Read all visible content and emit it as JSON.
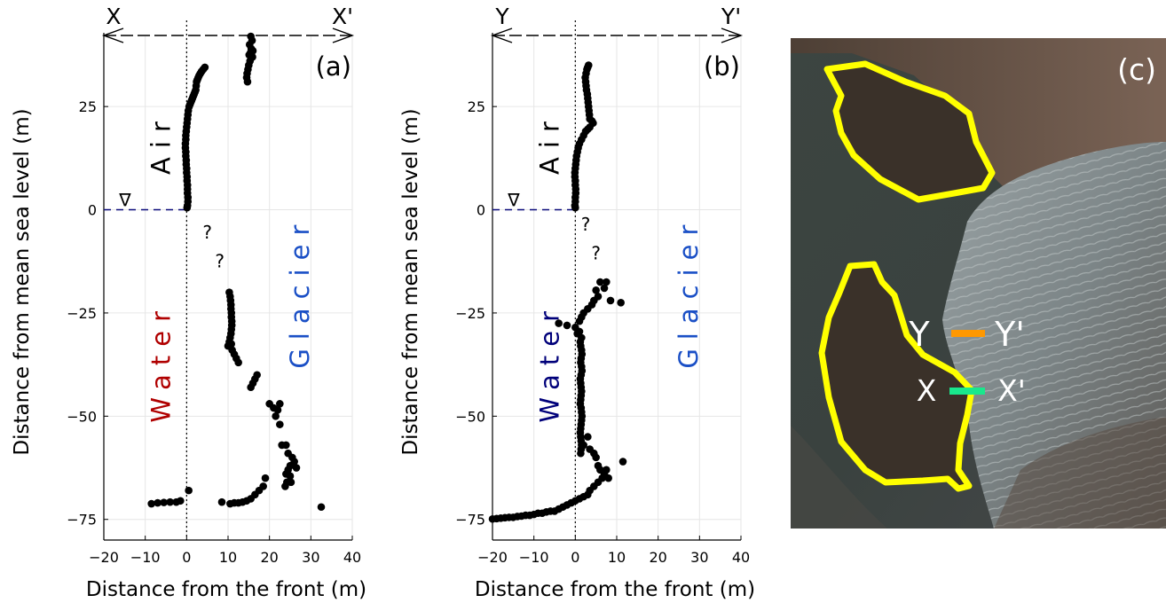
{
  "colors": {
    "points": "#000000",
    "grid": "#e6e6e6",
    "sea_level_line": "#0a0a7a",
    "water_red": "#b00000",
    "water_navy": "#00007a",
    "glacier_blue": "#1a4fc6",
    "outline_yellow": "#ffff00",
    "profile_orange": "#ff9800",
    "profile_green": "#19e88c"
  },
  "chart_data": [
    {
      "type": "scatter",
      "panel_label": "(a)",
      "xlabel": "Distance from the front (m)",
      "ylabel": "Distance from mean sea level (m)",
      "xlim": [
        -20,
        40
      ],
      "ylim": [
        -80,
        42
      ],
      "xticks": [
        -20,
        -10,
        0,
        10,
        20,
        30,
        40
      ],
      "yticks": [
        -75,
        -50,
        -25,
        0,
        25
      ],
      "grid": true,
      "profile_start_label": "X",
      "profile_end_label": "X'",
      "region_labels": {
        "air": "Air",
        "water": "Water",
        "glacier": "Glacier"
      },
      "sea_level_symbol": "∇",
      "unknown_markers": [
        {
          "x": 5,
          "y": -7,
          "text": "?"
        },
        {
          "x": 8,
          "y": -14,
          "text": "?"
        }
      ],
      "points": [
        [
          15.5,
          42
        ],
        [
          15.8,
          41
        ],
        [
          15.2,
          40
        ],
        [
          15.6,
          39
        ],
        [
          15.4,
          38
        ],
        [
          15.9,
          37
        ],
        [
          15.3,
          36
        ],
        [
          15.0,
          35
        ],
        [
          14.8,
          34
        ],
        [
          14.6,
          33
        ],
        [
          14.5,
          32
        ],
        [
          14.7,
          31
        ],
        [
          16.0,
          38.5
        ],
        [
          15.1,
          37.5
        ],
        [
          4.4,
          34.5
        ],
        [
          4.0,
          34
        ],
        [
          3.6,
          33.5
        ],
        [
          3.3,
          33
        ],
        [
          3.0,
          32.5
        ],
        [
          2.8,
          32
        ],
        [
          2.6,
          31.5
        ],
        [
          2.4,
          31
        ],
        [
          2.3,
          30
        ],
        [
          2.2,
          29
        ],
        [
          2.0,
          28.5
        ],
        [
          1.8,
          28
        ],
        [
          1.6,
          27.5
        ],
        [
          1.4,
          27
        ],
        [
          1.2,
          26.5
        ],
        [
          1.0,
          26
        ],
        [
          0.8,
          25.5
        ],
        [
          0.6,
          25
        ],
        [
          0.4,
          24
        ],
        [
          0.3,
          23
        ],
        [
          0.2,
          22
        ],
        [
          0.1,
          21
        ],
        [
          0.0,
          20
        ],
        [
          -0.1,
          19
        ],
        [
          -0.2,
          18
        ],
        [
          -0.2,
          17
        ],
        [
          -0.3,
          16
        ],
        [
          -0.3,
          15
        ],
        [
          -0.2,
          14
        ],
        [
          -0.2,
          13
        ],
        [
          -0.1,
          12
        ],
        [
          -0.1,
          11
        ],
        [
          0.0,
          10
        ],
        [
          0.0,
          9
        ],
        [
          0.1,
          8
        ],
        [
          0.1,
          7
        ],
        [
          0.2,
          6
        ],
        [
          0.2,
          5
        ],
        [
          0.2,
          4
        ],
        [
          0.3,
          3
        ],
        [
          0.3,
          2
        ],
        [
          0.2,
          1
        ],
        [
          0.1,
          0.5
        ],
        [
          10.3,
          -20
        ],
        [
          10.5,
          -21
        ],
        [
          10.6,
          -22
        ],
        [
          10.7,
          -23
        ],
        [
          10.7,
          -24
        ],
        [
          10.8,
          -25
        ],
        [
          10.8,
          -26
        ],
        [
          10.9,
          -27
        ],
        [
          10.9,
          -28
        ],
        [
          10.8,
          -29
        ],
        [
          10.7,
          -30
        ],
        [
          10.5,
          -31
        ],
        [
          10.3,
          -32
        ],
        [
          10.0,
          -33
        ],
        [
          10.8,
          -32.5
        ],
        [
          11.0,
          -34
        ],
        [
          11.5,
          -35
        ],
        [
          12.0,
          -36
        ],
        [
          12.5,
          -37
        ],
        [
          17.0,
          -40
        ],
        [
          16.5,
          -41
        ],
        [
          16.0,
          -42
        ],
        [
          15.5,
          -43
        ],
        [
          20.0,
          -47
        ],
        [
          21.0,
          -48
        ],
        [
          22.0,
          -48.5
        ],
        [
          22.5,
          -47
        ],
        [
          21.5,
          -50
        ],
        [
          22.5,
          -52
        ],
        [
          23.0,
          -57
        ],
        [
          24.0,
          -57
        ],
        [
          24.5,
          -59
        ],
        [
          25.5,
          -60
        ],
        [
          26.0,
          -61
        ],
        [
          25.0,
          -62
        ],
        [
          24.5,
          -63
        ],
        [
          24.0,
          -64
        ],
        [
          25.0,
          -64.5
        ],
        [
          24.2,
          -66
        ],
        [
          25.2,
          -66
        ],
        [
          23.8,
          -67
        ],
        [
          26.5,
          -62.5
        ],
        [
          19.0,
          -65
        ],
        [
          18.5,
          -67
        ],
        [
          17.5,
          -68
        ],
        [
          16.5,
          -69
        ],
        [
          15.5,
          -70
        ],
        [
          14.5,
          -70.5
        ],
        [
          13.5,
          -70.8
        ],
        [
          12.5,
          -71
        ],
        [
          11.5,
          -71
        ],
        [
          10.5,
          -71.2
        ],
        [
          8.5,
          -70.8
        ],
        [
          32.5,
          -72
        ],
        [
          0.5,
          -68
        ],
        [
          -1.5,
          -70.5
        ],
        [
          -2.5,
          -70.8
        ],
        [
          -4,
          -70.8
        ],
        [
          -5.5,
          -70.9
        ],
        [
          -7,
          -71
        ],
        [
          -8.5,
          -71.2
        ]
      ]
    },
    {
      "type": "scatter",
      "panel_label": "(b)",
      "xlabel": "Distance from the front (m)",
      "ylabel": "Distance from mean sea level (m)",
      "xlim": [
        -20,
        40
      ],
      "ylim": [
        -80,
        42
      ],
      "xticks": [
        -20,
        -10,
        0,
        10,
        20,
        30,
        40
      ],
      "yticks": [
        -75,
        -50,
        -25,
        0,
        25
      ],
      "grid": true,
      "profile_start_label": "Y",
      "profile_end_label": "Y'",
      "region_labels": {
        "air": "Air",
        "water": "Water",
        "glacier": "Glacier"
      },
      "sea_level_symbol": "∇",
      "unknown_markers": [
        {
          "x": 2.5,
          "y": -5,
          "text": "?"
        },
        {
          "x": 5,
          "y": -12,
          "text": "?"
        }
      ],
      "points": [
        [
          3.2,
          35
        ],
        [
          3.0,
          34.5
        ],
        [
          2.8,
          34
        ],
        [
          2.6,
          33
        ],
        [
          2.4,
          32
        ],
        [
          2.5,
          31
        ],
        [
          2.6,
          30
        ],
        [
          2.7,
          29
        ],
        [
          2.9,
          28
        ],
        [
          3.0,
          27
        ],
        [
          3.1,
          26
        ],
        [
          3.2,
          25
        ],
        [
          3.3,
          24
        ],
        [
          3.4,
          23
        ],
        [
          3.5,
          22
        ],
        [
          4.0,
          21.5
        ],
        [
          4.3,
          21
        ],
        [
          3.5,
          20
        ],
        [
          3.0,
          19.5
        ],
        [
          2.5,
          19
        ],
        [
          2.0,
          18
        ],
        [
          1.5,
          17
        ],
        [
          1.0,
          16
        ],
        [
          0.7,
          15
        ],
        [
          0.5,
          14
        ],
        [
          0.3,
          13
        ],
        [
          0.2,
          12
        ],
        [
          0.1,
          11
        ],
        [
          0.0,
          10
        ],
        [
          -0.1,
          9
        ],
        [
          -0.1,
          8
        ],
        [
          0.0,
          7
        ],
        [
          0.0,
          6
        ],
        [
          0.1,
          5
        ],
        [
          0.1,
          4
        ],
        [
          0.0,
          3
        ],
        [
          0.0,
          2
        ],
        [
          -0.1,
          1
        ],
        [
          0.0,
          0.5
        ],
        [
          7.5,
          -17.5
        ],
        [
          6.0,
          -17.5
        ],
        [
          7.0,
          -19
        ],
        [
          5.0,
          -19.5
        ],
        [
          5.5,
          -21
        ],
        [
          4.5,
          -22
        ],
        [
          8.5,
          -22
        ],
        [
          11.0,
          -22.5
        ],
        [
          4.0,
          -23
        ],
        [
          3.0,
          -24
        ],
        [
          2.0,
          -25
        ],
        [
          1.5,
          -26
        ],
        [
          1.0,
          -27
        ],
        [
          -4.0,
          -27.5
        ],
        [
          -2.0,
          -28
        ],
        [
          0.0,
          -28.5
        ],
        [
          1.0,
          -29.5
        ],
        [
          0.5,
          -30
        ],
        [
          1.5,
          -31
        ],
        [
          1.2,
          -32
        ],
        [
          1.3,
          -33
        ],
        [
          1.5,
          -34
        ],
        [
          1.6,
          -35
        ],
        [
          1.4,
          -36
        ],
        [
          1.3,
          -37
        ],
        [
          1.5,
          -38
        ],
        [
          1.6,
          -39
        ],
        [
          1.4,
          -40
        ],
        [
          1.2,
          -41
        ],
        [
          1.3,
          -42
        ],
        [
          1.4,
          -43
        ],
        [
          1.5,
          -44
        ],
        [
          1.4,
          -45
        ],
        [
          1.3,
          -46
        ],
        [
          1.2,
          -47
        ],
        [
          1.4,
          -48
        ],
        [
          1.5,
          -49
        ],
        [
          1.6,
          -50
        ],
        [
          1.5,
          -51
        ],
        [
          1.4,
          -52
        ],
        [
          1.3,
          -53
        ],
        [
          1.2,
          -54
        ],
        [
          1.3,
          -55
        ],
        [
          1.4,
          -56
        ],
        [
          1.5,
          -57
        ],
        [
          1.4,
          -58
        ],
        [
          1.3,
          -59
        ],
        [
          2.0,
          -57
        ],
        [
          3.0,
          -55
        ],
        [
          3.5,
          -58
        ],
        [
          4.5,
          -59
        ],
        [
          5.0,
          -60
        ],
        [
          5.5,
          -62
        ],
        [
          6.0,
          -63
        ],
        [
          7.0,
          -64
        ],
        [
          6.5,
          -65
        ],
        [
          5.5,
          -66
        ],
        [
          4.5,
          -67
        ],
        [
          3.5,
          -68
        ],
        [
          3.0,
          -69
        ],
        [
          11.5,
          -61
        ],
        [
          7.5,
          -63
        ],
        [
          8.0,
          -65
        ],
        [
          2.0,
          -69.5
        ],
        [
          1.0,
          -70
        ],
        [
          0.0,
          -70.5
        ],
        [
          -1.0,
          -71
        ],
        [
          -2.0,
          -71.5
        ],
        [
          -3.0,
          -72
        ],
        [
          -4.0,
          -72.5
        ],
        [
          -5.0,
          -73
        ],
        [
          -6.0,
          -73
        ],
        [
          -7.0,
          -73.2
        ],
        [
          -8.0,
          -73.5
        ],
        [
          -9.0,
          -73.5
        ],
        [
          -10.0,
          -73.8
        ],
        [
          -11.0,
          -74
        ],
        [
          -12.0,
          -74
        ],
        [
          -13.0,
          -74.2
        ],
        [
          -14.0,
          -74.3
        ],
        [
          -15.0,
          -74.5
        ],
        [
          -16.0,
          -74.5
        ],
        [
          -17.0,
          -74.6
        ],
        [
          -18.0,
          -74.7
        ],
        [
          -19.0,
          -74.8
        ],
        [
          -20.0,
          -74.9
        ]
      ]
    }
  ],
  "map_panel": {
    "panel_label": "(c)",
    "profile_y": {
      "start": "Y",
      "end": "Y'"
    },
    "profile_x": {
      "start": "X",
      "end": "X'"
    }
  }
}
